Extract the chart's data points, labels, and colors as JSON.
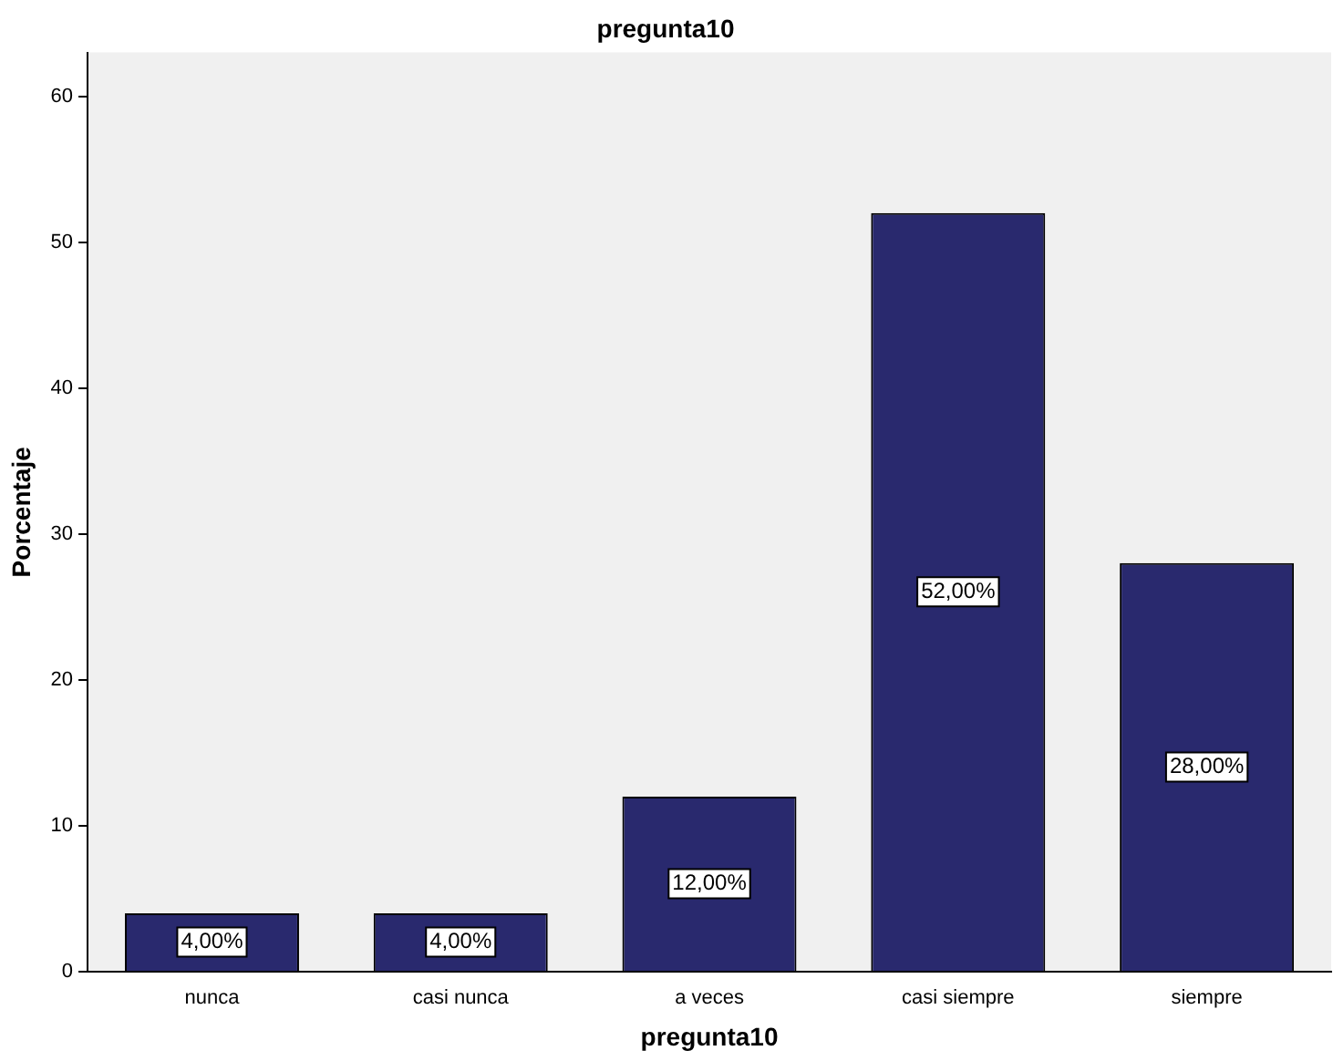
{
  "chart_data": {
    "type": "bar",
    "title": "pregunta10",
    "xlabel": "pregunta10",
    "ylabel": "Porcentaje",
    "categories": [
      "nunca",
      "casi nunca",
      "a veces",
      "casi siempre",
      "siempre"
    ],
    "values": [
      4,
      4,
      12,
      52,
      28
    ],
    "color": "#29296e",
    "value_labels": [
      "4,00%",
      "4,00%",
      "12,00%",
      "52,00%",
      "28,00%"
    ],
    "ylim": [
      0,
      63
    ],
    "yticks": [
      0,
      10,
      20,
      30,
      40,
      50,
      60
    ],
    "grid": false,
    "legend": false
  }
}
